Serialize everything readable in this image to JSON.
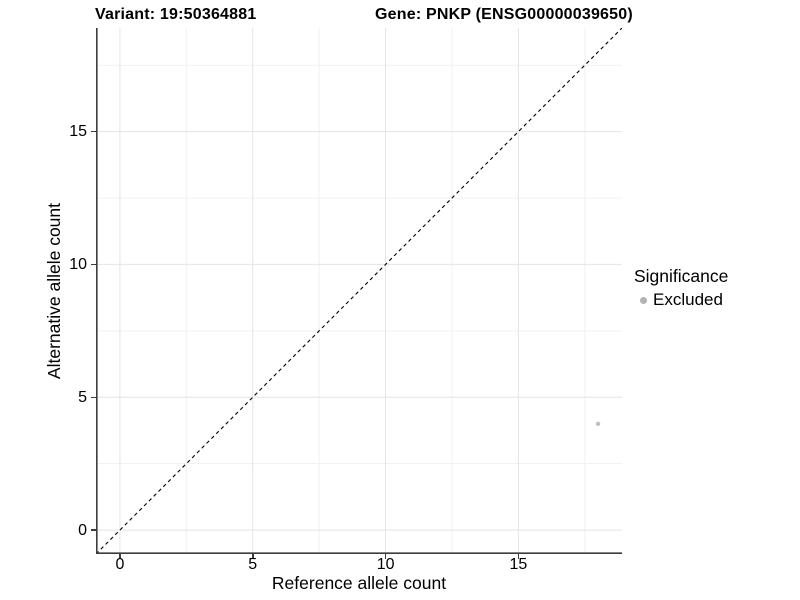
{
  "header": {
    "variant_title": "Variant: 19:50364881",
    "gene_title": "Gene: PNKP (ENSG00000039650)"
  },
  "legend": {
    "title": "Significance",
    "items": [
      {
        "label": "Excluded",
        "color": "#b3b3b3",
        "shape": "circle"
      }
    ]
  },
  "style": {
    "background": "#ffffff",
    "axis_color": "#3d3d3d",
    "grid_major_color": "#e4e4e4",
    "grid_minor_color": "#f1f1f1",
    "text_color": "#000000",
    "identity_line_color": "#000000",
    "point_color": "#bfbfbf"
  },
  "chart_data": {
    "type": "scatter",
    "titles": [
      "Variant: 19:50364881",
      "Gene: PNKP (ENSG00000039650)"
    ],
    "xlabel": "Reference allele count",
    "ylabel": "Alternative allele count",
    "xlim": [
      -0.9,
      18.9
    ],
    "ylim": [
      -0.9,
      18.9
    ],
    "xticks": [
      0,
      5,
      10,
      15
    ],
    "yticks": [
      0,
      5,
      10,
      15
    ],
    "x_minor_ticks": [
      2.5,
      7.5,
      12.5,
      17.5
    ],
    "y_minor_ticks": [
      2.5,
      7.5,
      12.5,
      17.5
    ],
    "grid": "major+minor",
    "legend_position": "right",
    "series": [
      {
        "name": "Excluded",
        "color": "#bfbfbf",
        "points": [
          {
            "x": 18,
            "y": 4
          }
        ]
      }
    ],
    "reference_line": {
      "slope": 1,
      "intercept": 0,
      "style": "dashed",
      "color": "#000000"
    }
  }
}
